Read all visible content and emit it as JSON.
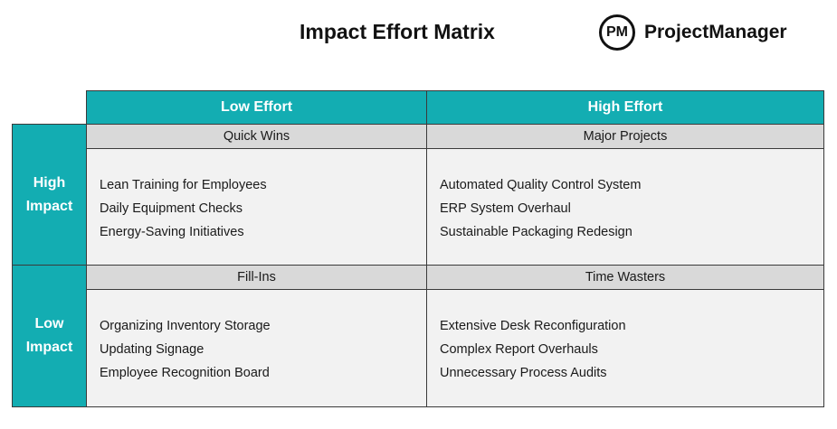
{
  "title": "Impact Effort Matrix",
  "logo": {
    "mark": "PM",
    "name": "ProjectManager"
  },
  "colors": {
    "header_teal": "#13adb2",
    "quadrant_label_gray": "#d9d9d9",
    "quadrant_body_gray": "#f2f2f2"
  },
  "columns": {
    "low_effort": "Low Effort",
    "high_effort": "High Effort"
  },
  "rows": {
    "high_impact": [
      "High",
      "Impact"
    ],
    "low_impact": [
      "Low",
      "Impact"
    ]
  },
  "quadrants": {
    "quick_wins": {
      "label": "Quick Wins",
      "items": [
        "Lean Training for Employees",
        "Daily Equipment Checks",
        "Energy-Saving Initiatives"
      ]
    },
    "major_projects": {
      "label": "Major Projects",
      "items": [
        "Automated Quality Control System",
        "ERP System Overhaul",
        "Sustainable Packaging Redesign"
      ]
    },
    "fill_ins": {
      "label": "Fill-Ins",
      "items": [
        "Organizing Inventory Storage",
        "Updating Signage",
        "Employee Recognition Board"
      ]
    },
    "time_wasters": {
      "label": "Time Wasters",
      "items": [
        "Extensive Desk Reconfiguration",
        "Complex Report Overhauls",
        "Unnecessary Process Audits"
      ]
    }
  }
}
